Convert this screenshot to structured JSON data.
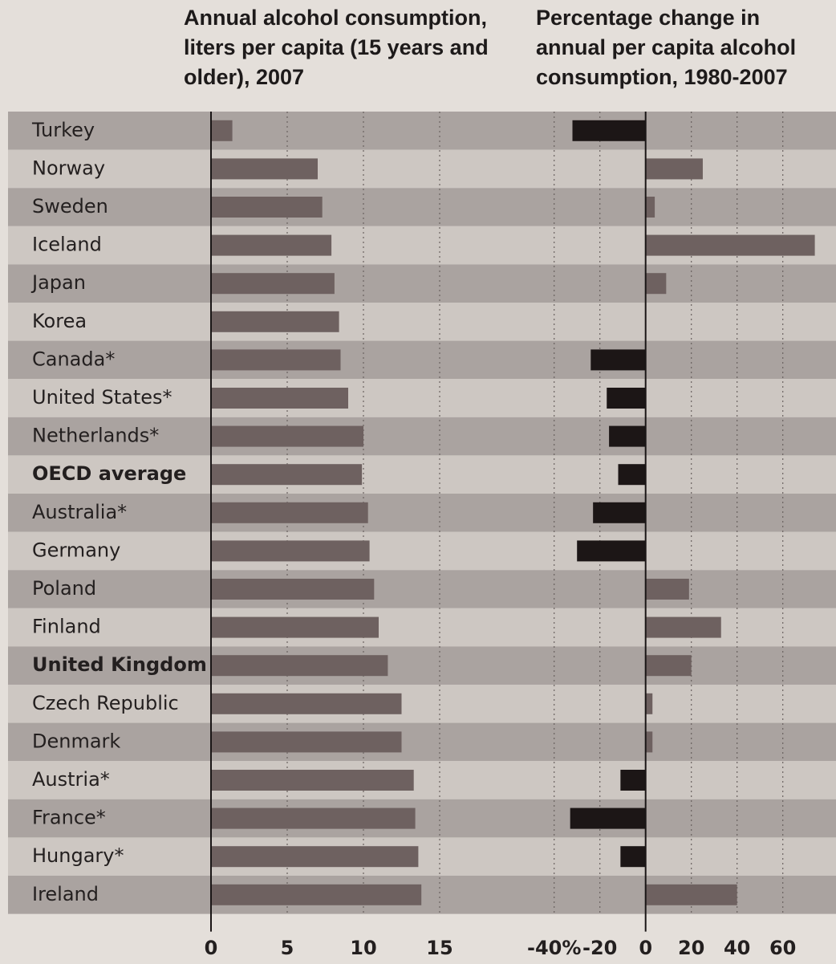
{
  "chart_data": [
    {
      "type": "bar",
      "orientation": "horizontal",
      "title": "Annual alcohol consumption, liters per capita (15 years and older), 2007",
      "categories": [
        "Turkey",
        "Norway",
        "Sweden",
        "Iceland",
        "Japan",
        "Korea",
        "Canada*",
        "United States*",
        "Netherlands*",
        "OECD average",
        "Australia*",
        "Germany",
        "Poland",
        "Finland",
        "United Kingdom",
        "Czech Republic",
        "Denmark",
        "Austria*",
        "France*",
        "Hungary*",
        "Ireland"
      ],
      "values": [
        1.4,
        7.0,
        7.3,
        7.9,
        8.1,
        8.4,
        8.5,
        9.0,
        10.0,
        9.9,
        10.3,
        10.4,
        10.7,
        11.0,
        11.6,
        12.5,
        12.5,
        13.3,
        13.4,
        13.6,
        13.8
      ],
      "color": "#6e6160",
      "xlim": [
        0,
        17
      ],
      "xticks": [
        0,
        5,
        10,
        15
      ],
      "grid": true,
      "bold_categories": [
        9,
        14
      ]
    },
    {
      "type": "bar",
      "orientation": "horizontal",
      "title": "Percentage change in annual per capita alcohol consumption, 1980-2007",
      "values": [
        -32,
        25,
        4,
        74,
        9,
        0,
        -24,
        -17,
        -16,
        -12,
        -23,
        -30,
        19,
        33,
        20,
        3,
        3,
        -11,
        -33,
        -11,
        40
      ],
      "color": "#6e6160",
      "negative_color": "#1c1616",
      "xlim": [
        -42,
        78
      ],
      "xticks": [
        {
          "value": -40,
          "label": "-40%"
        },
        -20,
        0,
        20,
        40,
        60
      ],
      "grid": true
    }
  ]
}
